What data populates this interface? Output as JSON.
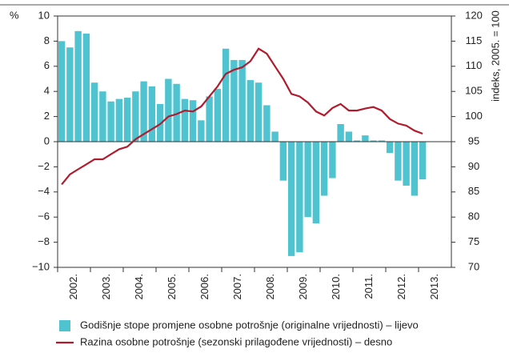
{
  "chart_data": {
    "type": "bar",
    "y_label": "%",
    "y2_label": "indeks, 2005. = 100",
    "categories": [
      "2002.",
      null,
      null,
      null,
      "2003.",
      null,
      null,
      null,
      "2004.",
      null,
      null,
      null,
      "2005.",
      null,
      null,
      null,
      "2006.",
      null,
      null,
      null,
      "2007.",
      null,
      null,
      null,
      "2008.",
      null,
      null,
      null,
      "2009.",
      null,
      null,
      null,
      "2010.",
      null,
      null,
      null,
      "2011.",
      null,
      null,
      null,
      "2012.",
      null,
      null,
      null,
      "2013.",
      null,
      null,
      null
    ],
    "series": [
      {
        "name": "Godišnje stope promjene osobne potrošnje (originalne vrijednosti) – lijevo",
        "type": "bar",
        "color": "#4fc3cf",
        "values": [
          8.0,
          7.5,
          8.8,
          8.6,
          4.7,
          4.0,
          3.2,
          3.4,
          3.5,
          4.0,
          4.8,
          4.4,
          3.0,
          5.0,
          4.6,
          3.4,
          3.3,
          1.7,
          3.6,
          4.2,
          7.4,
          6.5,
          6.5,
          4.9,
          4.7,
          2.9,
          0.8,
          -3.1,
          -9.1,
          -8.8,
          -6.0,
          -6.5,
          -4.3,
          -2.9,
          1.4,
          0.8,
          0.1,
          0.5,
          0.1,
          0.1,
          -0.9,
          -3.1,
          -3.5,
          -4.3,
          -3.0,
          null,
          null,
          null
        ]
      },
      {
        "name": "Razina osobne potrošnje (sezonski prilagođene vrijednosti) – desno",
        "type": "line",
        "color": "#b01c2e",
        "axis": "y2",
        "values": [
          86.5,
          88.5,
          89.5,
          90.5,
          91.5,
          91.5,
          92.5,
          93.5,
          94,
          95.5,
          96.5,
          97.5,
          98.5,
          100,
          100.5,
          101.2,
          101,
          102,
          104,
          106,
          108.5,
          109.3,
          109.8,
          111,
          113.5,
          112.5,
          110,
          107.5,
          104.5,
          104,
          102.8,
          101,
          100.2,
          101.7,
          102.5,
          101.2,
          101.2,
          101.6,
          101.9,
          101.2,
          99.5,
          98.6,
          98.2,
          97.2,
          96.6,
          null,
          null,
          null
        ]
      }
    ],
    "ylim": [
      -10,
      10
    ],
    "yticks": [
      {
        "value": -10,
        "label": "−10"
      },
      {
        "value": -8,
        "label": "−8"
      },
      {
        "value": -6,
        "label": "−6"
      },
      {
        "value": -4,
        "label": "−4"
      },
      {
        "value": -2,
        "label": "−2"
      },
      0,
      2,
      4,
      6,
      8,
      10
    ],
    "y2lim": [
      70,
      120
    ],
    "y2ticks": [
      70,
      75,
      80,
      85,
      90,
      95,
      100,
      105,
      110,
      115,
      120
    ]
  }
}
